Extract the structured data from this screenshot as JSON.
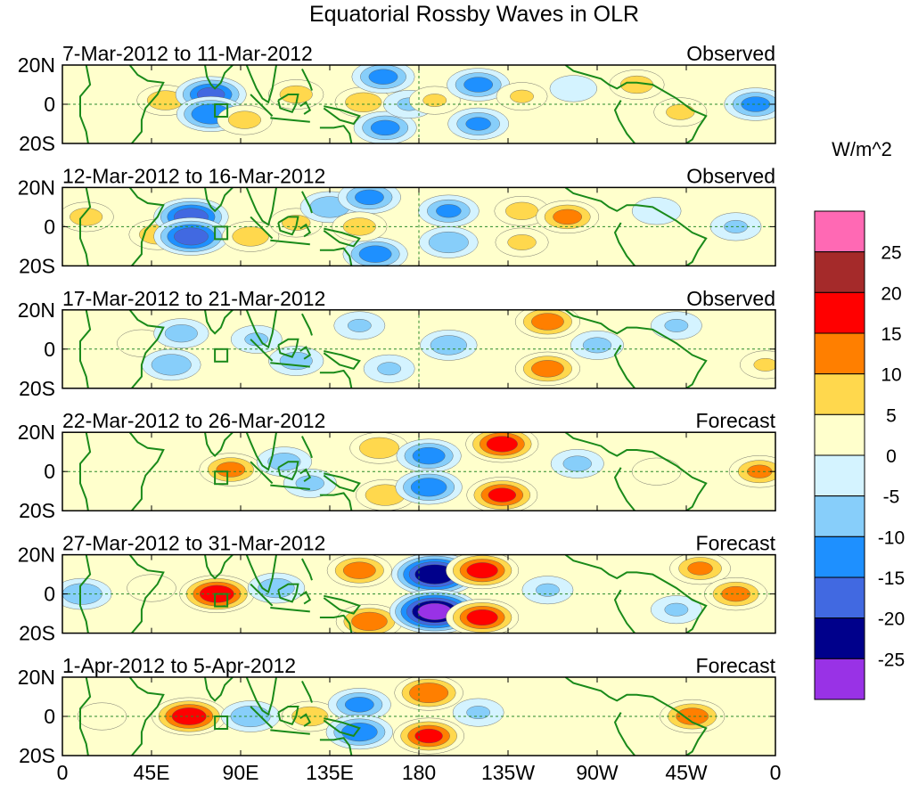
{
  "chart_data": {
    "type": "heatmap",
    "title": "Equatorial Rossby Waves in OLR",
    "units_label": "W/m^2",
    "x_ticks": [
      {
        "lon": 0,
        "label": "0"
      },
      {
        "lon": 45,
        "label": "45E"
      },
      {
        "lon": 90,
        "label": "90E"
      },
      {
        "lon": 135,
        "label": "135E"
      },
      {
        "lon": 180,
        "label": "180"
      },
      {
        "lon": 225,
        "label": "135W"
      },
      {
        "lon": 270,
        "label": "90W"
      },
      {
        "lon": 315,
        "label": "45W"
      },
      {
        "lon": 360,
        "label": "0"
      }
    ],
    "y_ticks": [
      {
        "lat": 20,
        "label": "20N"
      },
      {
        "lat": 0,
        "label": "0"
      },
      {
        "lat": -20,
        "label": "20S"
      }
    ],
    "xlim": [
      0,
      360
    ],
    "ylim": [
      -20,
      20
    ],
    "colorbar": {
      "bins": [
        {
          "range": [
            -30,
            -25
          ],
          "color": "#9932e6"
        },
        {
          "range": [
            -25,
            -20
          ],
          "color": "#00008b"
        },
        {
          "range": [
            -20,
            -15
          ],
          "color": "#4169e1"
        },
        {
          "range": [
            -15,
            -10
          ],
          "color": "#1e90ff"
        },
        {
          "range": [
            -10,
            -5
          ],
          "color": "#87cefa"
        },
        {
          "range": [
            -5,
            0
          ],
          "color": "#d4f3ff"
        },
        {
          "range": [
            0,
            5
          ],
          "color": "#ffffcc"
        },
        {
          "range": [
            5,
            10
          ],
          "color": "#ffd84d"
        },
        {
          "range": [
            10,
            15
          ],
          "color": "#ff7f00"
        },
        {
          "range": [
            15,
            20
          ],
          "color": "#ff0000"
        },
        {
          "range": [
            20,
            25
          ],
          "color": "#a52a2a"
        },
        {
          "range": [
            25,
            30
          ],
          "color": "#ff69b4"
        }
      ],
      "tick_labels": [
        "25",
        "20",
        "15",
        "10",
        "5",
        "0",
        "-5",
        "-10",
        "-15",
        "-20",
        "-25"
      ]
    },
    "panels": [
      {
        "period": "7-Mar-2012 to 11-Mar-2012",
        "status": "Observed",
        "features": [
          {
            "lon": 52,
            "lat": 2,
            "value": 9
          },
          {
            "lon": 75,
            "lat": 5,
            "value": -16
          },
          {
            "lon": 75,
            "lat": -5,
            "value": -15
          },
          {
            "lon": 92,
            "lat": -8,
            "value": 8
          },
          {
            "lon": 118,
            "lat": 5,
            "value": 8
          },
          {
            "lon": 152,
            "lat": 1,
            "value": 9
          },
          {
            "lon": 162,
            "lat": 14,
            "value": -12
          },
          {
            "lon": 163,
            "lat": -12,
            "value": -12
          },
          {
            "lon": 175,
            "lat": 0,
            "value": -6
          },
          {
            "lon": 188,
            "lat": 2,
            "value": 6
          },
          {
            "lon": 210,
            "lat": 10,
            "value": -12
          },
          {
            "lon": 210,
            "lat": -10,
            "value": -11
          },
          {
            "lon": 232,
            "lat": 4,
            "value": 6
          },
          {
            "lon": 258,
            "lat": 8,
            "value": -4
          },
          {
            "lon": 290,
            "lat": 10,
            "value": 8
          },
          {
            "lon": 312,
            "lat": -4,
            "value": 7
          },
          {
            "lon": 350,
            "lat": 0,
            "value": -12
          }
        ]
      },
      {
        "period": "12-Mar-2012 to 16-Mar-2012",
        "status": "Observed",
        "features": [
          {
            "lon": 12,
            "lat": 5,
            "value": 8
          },
          {
            "lon": 48,
            "lat": -4,
            "value": 9
          },
          {
            "lon": 65,
            "lat": 5,
            "value": -18
          },
          {
            "lon": 65,
            "lat": -5,
            "value": -18
          },
          {
            "lon": 95,
            "lat": -5,
            "value": 9
          },
          {
            "lon": 118,
            "lat": 2,
            "value": 7
          },
          {
            "lon": 135,
            "lat": 10,
            "value": -10
          },
          {
            "lon": 155,
            "lat": 15,
            "value": -12
          },
          {
            "lon": 158,
            "lat": -14,
            "value": -13
          },
          {
            "lon": 150,
            "lat": 0,
            "value": 8
          },
          {
            "lon": 195,
            "lat": 8,
            "value": -11
          },
          {
            "lon": 195,
            "lat": -8,
            "value": -10
          },
          {
            "lon": 232,
            "lat": 8,
            "value": 8
          },
          {
            "lon": 232,
            "lat": -8,
            "value": 7
          },
          {
            "lon": 255,
            "lat": 5,
            "value": 12
          },
          {
            "lon": 300,
            "lat": 8,
            "value": -5
          },
          {
            "lon": 340,
            "lat": 0,
            "value": -6
          }
        ]
      },
      {
        "period": "17-Mar-2012 to 21-Mar-2012",
        "status": "Observed",
        "features": [
          {
            "lon": 40,
            "lat": 3,
            "value": 5
          },
          {
            "lon": 60,
            "lat": 8,
            "value": -8
          },
          {
            "lon": 55,
            "lat": -8,
            "value": -10
          },
          {
            "lon": 98,
            "lat": 5,
            "value": -6
          },
          {
            "lon": 118,
            "lat": -6,
            "value": -8
          },
          {
            "lon": 150,
            "lat": 12,
            "value": -6
          },
          {
            "lon": 165,
            "lat": -10,
            "value": -6
          },
          {
            "lon": 195,
            "lat": 2,
            "value": -9
          },
          {
            "lon": 245,
            "lat": 14,
            "value": 13
          },
          {
            "lon": 245,
            "lat": -10,
            "value": 13
          },
          {
            "lon": 270,
            "lat": 2,
            "value": -7
          },
          {
            "lon": 310,
            "lat": 12,
            "value": -6
          },
          {
            "lon": 355,
            "lat": -8,
            "value": 6
          }
        ]
      },
      {
        "period": "22-Mar-2012 to 26-Mar-2012",
        "status": "Forecast",
        "features": [
          {
            "lon": 85,
            "lat": 1,
            "value": 12
          },
          {
            "lon": 112,
            "lat": 5,
            "value": -8
          },
          {
            "lon": 125,
            "lat": -6,
            "value": -7
          },
          {
            "lon": 160,
            "lat": 12,
            "value": 10
          },
          {
            "lon": 163,
            "lat": -12,
            "value": 10
          },
          {
            "lon": 185,
            "lat": 8,
            "value": -13
          },
          {
            "lon": 185,
            "lat": -8,
            "value": -14
          },
          {
            "lon": 222,
            "lat": 14,
            "value": 17
          },
          {
            "lon": 222,
            "lat": -12,
            "value": 16
          },
          {
            "lon": 260,
            "lat": 4,
            "value": -7
          },
          {
            "lon": 300,
            "lat": 0,
            "value": 5
          },
          {
            "lon": 352,
            "lat": 0,
            "value": 11
          }
        ]
      },
      {
        "period": "27-Mar-2012 to 31-Mar-2012",
        "status": "Forecast",
        "features": [
          {
            "lon": 10,
            "lat": 0,
            "value": -10
          },
          {
            "lon": 45,
            "lat": 3,
            "value": 5
          },
          {
            "lon": 78,
            "lat": 0,
            "value": 18
          },
          {
            "lon": 108,
            "lat": 3,
            "value": -9
          },
          {
            "lon": 150,
            "lat": 12,
            "value": 13
          },
          {
            "lon": 155,
            "lat": -14,
            "value": 14
          },
          {
            "lon": 188,
            "lat": 10,
            "value": -24
          },
          {
            "lon": 188,
            "lat": -9,
            "value": -26
          },
          {
            "lon": 212,
            "lat": 12,
            "value": 17
          },
          {
            "lon": 212,
            "lat": -12,
            "value": 17
          },
          {
            "lon": 245,
            "lat": 2,
            "value": -6
          },
          {
            "lon": 310,
            "lat": -8,
            "value": -6
          },
          {
            "lon": 322,
            "lat": 13,
            "value": 11
          },
          {
            "lon": 340,
            "lat": 0,
            "value": 12
          }
        ]
      },
      {
        "period": "1-Apr-2012 to 5-Apr-2012",
        "status": "Forecast",
        "features": [
          {
            "lon": 20,
            "lat": 0,
            "value": 5
          },
          {
            "lon": 64,
            "lat": 0,
            "value": 18
          },
          {
            "lon": 95,
            "lat": 0,
            "value": -10
          },
          {
            "lon": 125,
            "lat": 0,
            "value": 9
          },
          {
            "lon": 150,
            "lat": 6,
            "value": -12
          },
          {
            "lon": 150,
            "lat": -8,
            "value": -14
          },
          {
            "lon": 185,
            "lat": 12,
            "value": 15
          },
          {
            "lon": 185,
            "lat": -10,
            "value": 16
          },
          {
            "lon": 210,
            "lat": 2,
            "value": -6
          },
          {
            "lon": 318,
            "lat": 0,
            "value": 13
          }
        ]
      }
    ]
  }
}
